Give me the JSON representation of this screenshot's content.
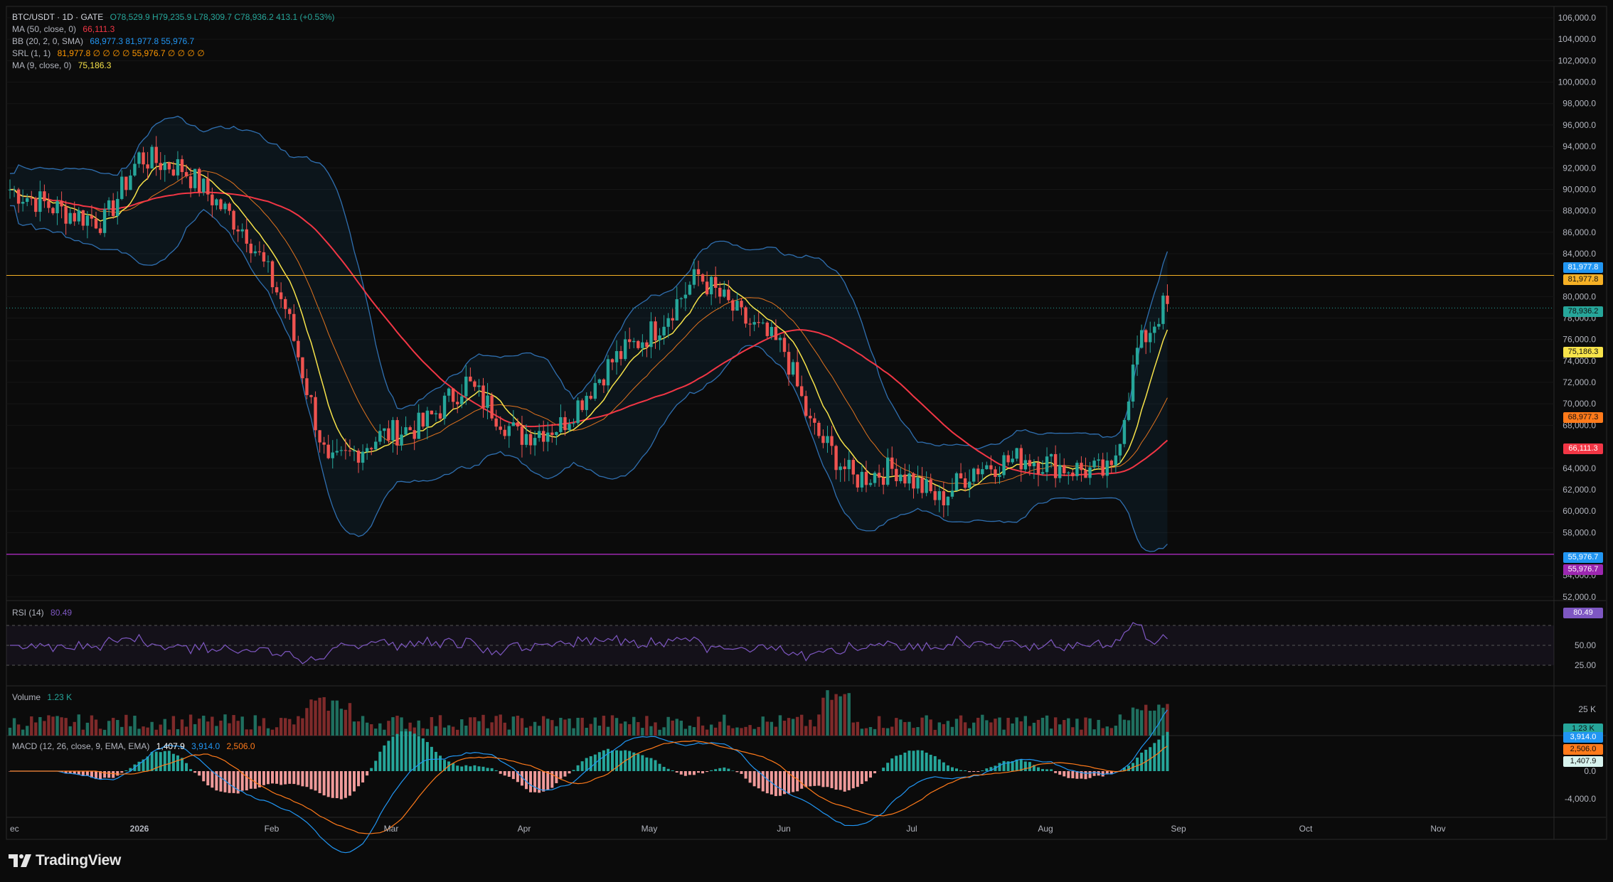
{
  "header": {
    "symbol": "BTC/USDT · 1D · GATE",
    "ohlc": "O78,529.9  H79,235.9  L78,309.7  C78,936.2  413.1 (+0.53%)"
  },
  "indicators": [
    {
      "name": "MA (50, close, 0)",
      "values": "66,111.3",
      "color": "#f23645"
    },
    {
      "name": "BB (20, 2, 0, SMA)",
      "values": "68,977.3  81,977.8  55,976.7",
      "color": "#2196f3"
    },
    {
      "name": "SRL (1, 1)",
      "values": "81,977.8  ∅ ∅ ∅ ∅  55,976.7  ∅ ∅ ∅ ∅",
      "color": "#ff9800"
    },
    {
      "name": "MA (9, close, 0)",
      "values": "75,186.3",
      "color": "#f7e34a"
    }
  ],
  "price_axis": {
    "ticks": [
      "106,000.0",
      "104,000.0",
      "102,000.0",
      "100,000.0",
      "98,000.0",
      "96,000.0",
      "94,000.0",
      "92,000.0",
      "90,000.0",
      "88,000.0",
      "86,000.0",
      "84,000.0",
      "80,000.0",
      "78,000.0",
      "76,000.0",
      "74,000.0",
      "72,000.0",
      "70,000.0",
      "68,000.0",
      "64,000.0",
      "62,000.0",
      "60,000.0",
      "58,000.0",
      "54,000.0",
      "52,000.0"
    ],
    "tags": [
      {
        "label": "81,977.8",
        "color": "#2196f3"
      },
      {
        "label": "81,977.8",
        "color": "#f5b025"
      },
      {
        "label": "78,936.2",
        "color": "#26a69a"
      },
      {
        "label": "75,186.3",
        "color": "#f7e34a"
      },
      {
        "label": "68,977.3",
        "color": "#ff7a1a"
      },
      {
        "label": "66,111.3",
        "color": "#f23645"
      },
      {
        "label": "55,976.7",
        "color": "#2196f3"
      },
      {
        "label": "55,976.7",
        "color": "#9c27b0"
      }
    ]
  },
  "rsi": {
    "label": "RSI (14)",
    "value": "80.49",
    "ticks": [
      "50.00",
      "25.00"
    ],
    "tag": "80.49"
  },
  "volume": {
    "label": "Volume",
    "value": "1.23 K",
    "tick": "25 K",
    "tag": "1.23 K"
  },
  "macd": {
    "label": "MACD (12, 26, close, 9, EMA, EMA)",
    "v1": "1,407.9",
    "v2": "3,914.0",
    "v3": "2,506.0",
    "ticks": [
      "0.0",
      "-4,000.0"
    ],
    "tags": [
      {
        "label": "3,914.0",
        "color": "#2196f3"
      },
      {
        "label": "2,506.0",
        "color": "#ff7a1a"
      },
      {
        "label": "1,407.9",
        "color": "#d8f3ee"
      }
    ]
  },
  "time_axis": [
    "ec",
    "2026",
    "Feb",
    "Mar",
    "Apr",
    "May",
    "Jun",
    "Jul",
    "Aug",
    "Sep",
    "Oct",
    "Nov"
  ],
  "brand": "TradingView",
  "colors": {
    "up": "#26a69a",
    "down": "#ef5350",
    "bg": "#0b0b0b",
    "grid": "#1c1c1c"
  }
}
